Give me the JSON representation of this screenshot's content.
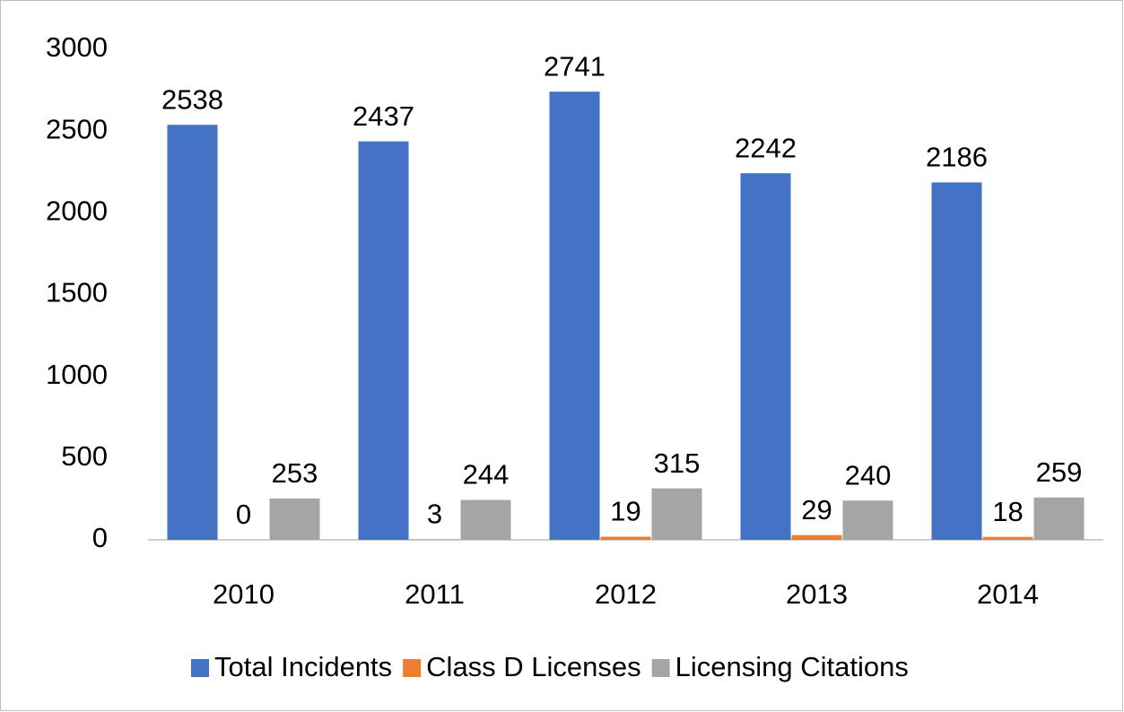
{
  "chart_data": {
    "type": "bar",
    "categories": [
      "2010",
      "2011",
      "2012",
      "2013",
      "2014"
    ],
    "series": [
      {
        "name": "Total Incidents",
        "color": "#4472c4",
        "values": [
          2538,
          2437,
          2741,
          2242,
          2186
        ]
      },
      {
        "name": "Class D Licenses",
        "color": "#ed7d31",
        "values": [
          0,
          3,
          19,
          29,
          18
        ]
      },
      {
        "name": "Licensing Citations",
        "color": "#a5a5a5",
        "values": [
          253,
          244,
          315,
          240,
          259
        ]
      }
    ],
    "ylim": [
      0,
      3000
    ],
    "yticks": [
      0,
      500,
      1000,
      1500,
      2000,
      2500,
      3000
    ],
    "grid": false,
    "legend": "bottom"
  }
}
